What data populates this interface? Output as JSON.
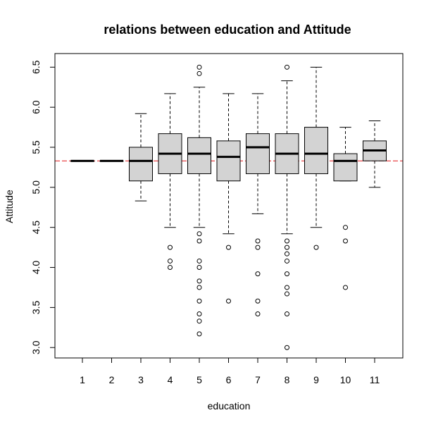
{
  "chart_data": {
    "type": "boxplot",
    "title": "relations between education and Attitude",
    "xlabel": "education",
    "ylabel": "Attitude",
    "categories": [
      "1",
      "2",
      "3",
      "4",
      "5",
      "6",
      "7",
      "8",
      "9",
      "10",
      "11"
    ],
    "yticks": [
      "3.0",
      "3.5",
      "4.0",
      "4.5",
      "5.0",
      "5.5",
      "6.0",
      "6.5"
    ],
    "ylim": [
      2.87,
      6.67
    ],
    "reference_line": {
      "value": 5.33,
      "color": "#e31a1c",
      "style": "dashed"
    },
    "grid": false,
    "legend": "none",
    "boxes": [
      {
        "category": "1",
        "whisker_low": 5.33,
        "q1": 5.33,
        "median": 5.33,
        "q3": 5.33,
        "whisker_high": 5.33,
        "outliers": []
      },
      {
        "category": "2",
        "whisker_low": 5.33,
        "q1": 5.33,
        "median": 5.33,
        "q3": 5.33,
        "whisker_high": 5.33,
        "outliers": []
      },
      {
        "category": "3",
        "whisker_low": 4.83,
        "q1": 5.08,
        "median": 5.33,
        "q3": 5.5,
        "whisker_high": 5.92,
        "outliers": []
      },
      {
        "category": "4",
        "whisker_low": 4.5,
        "q1": 5.17,
        "median": 5.42,
        "q3": 5.67,
        "whisker_high": 6.17,
        "outliers": [
          4.25,
          4.08,
          4.0
        ]
      },
      {
        "category": "5",
        "whisker_low": 4.5,
        "q1": 5.17,
        "median": 5.42,
        "q3": 5.62,
        "whisker_high": 6.25,
        "outliers": [
          6.5,
          6.42,
          4.42,
          4.33,
          4.08,
          4.0,
          3.83,
          3.75,
          3.58,
          3.42,
          3.33,
          3.17
        ]
      },
      {
        "category": "6",
        "whisker_low": 4.42,
        "q1": 5.08,
        "median": 5.38,
        "q3": 5.58,
        "whisker_high": 6.17,
        "outliers": [
          4.25,
          3.58
        ]
      },
      {
        "category": "7",
        "whisker_low": 4.67,
        "q1": 5.17,
        "median": 5.5,
        "q3": 5.67,
        "whisker_high": 6.17,
        "outliers": [
          4.33,
          4.25,
          3.92,
          3.58,
          3.42
        ]
      },
      {
        "category": "8",
        "whisker_low": 4.42,
        "q1": 5.17,
        "median": 5.42,
        "q3": 5.67,
        "whisker_high": 6.33,
        "outliers": [
          6.5,
          4.33,
          4.25,
          4.17,
          4.08,
          3.92,
          3.75,
          3.67,
          3.42,
          3.0
        ]
      },
      {
        "category": "9",
        "whisker_low": 4.5,
        "q1": 5.17,
        "median": 5.42,
        "q3": 5.75,
        "whisker_high": 6.5,
        "outliers": [
          4.25
        ]
      },
      {
        "category": "10",
        "whisker_low": 5.08,
        "q1": 5.08,
        "median": 5.33,
        "q3": 5.42,
        "whisker_high": 5.75,
        "outliers": [
          4.5,
          4.33,
          3.75
        ]
      },
      {
        "category": "11",
        "whisker_low": 5.0,
        "q1": 5.33,
        "median": 5.46,
        "q3": 5.58,
        "whisker_high": 5.83,
        "outliers": []
      }
    ]
  }
}
